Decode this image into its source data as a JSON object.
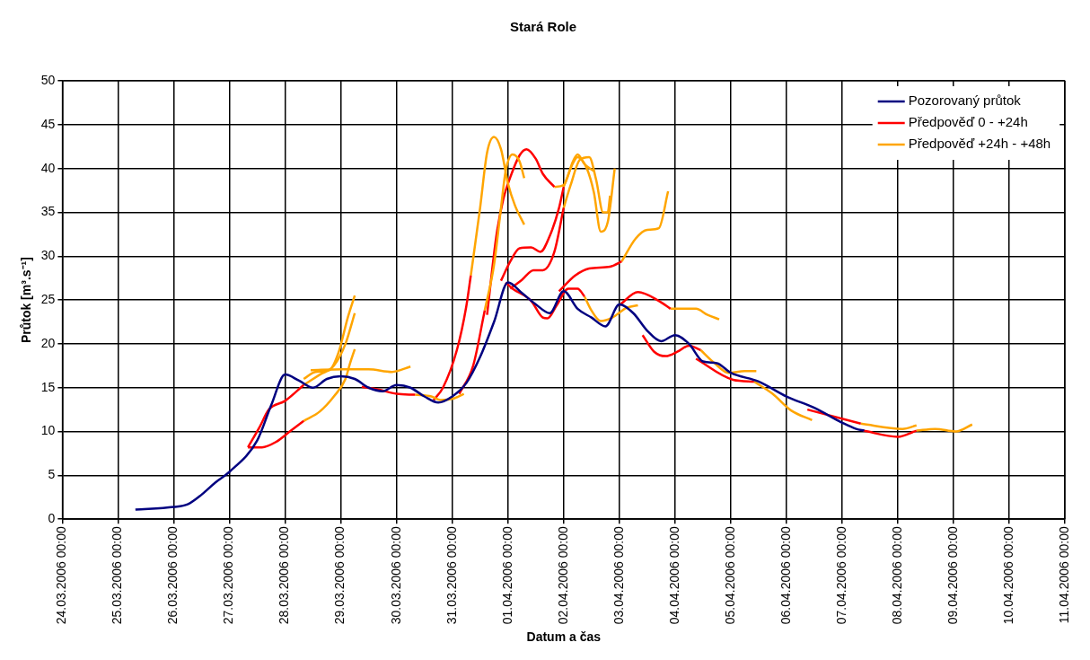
{
  "chart_data": {
    "type": "line",
    "title": "Stará Role",
    "xlabel": "Datum a čas",
    "ylabel": "Průtok [m³.s⁻¹]",
    "xlim": [
      "2006-03-24T00:00",
      "2006-04-11T00:00"
    ],
    "xticks": [
      {
        "value": "2006-03-24T00:00",
        "label": "24.03.2006 00:00"
      },
      {
        "value": "2006-03-25T00:00",
        "label": "25.03.2006 00:00"
      },
      {
        "value": "2006-03-26T00:00",
        "label": "26.03.2006 00:00"
      },
      {
        "value": "2006-03-27T00:00",
        "label": "27.03.2006 00:00"
      },
      {
        "value": "2006-03-28T00:00",
        "label": "28.03.2006 00:00"
      },
      {
        "value": "2006-03-29T00:00",
        "label": "29.03.2006 00:00"
      },
      {
        "value": "2006-03-30T00:00",
        "label": "30.03.2006 00:00"
      },
      {
        "value": "2006-03-31T00:00",
        "label": "31.03.2006 00:00"
      },
      {
        "value": "2006-04-01T00:00",
        "label": "01.04.2006 00:00"
      },
      {
        "value": "2006-04-02T00:00",
        "label": "02.04.2006 00:00"
      },
      {
        "value": "2006-04-03T00:00",
        "label": "03.04.2006 00:00"
      },
      {
        "value": "2006-04-04T00:00",
        "label": "04.04.2006 00:00"
      },
      {
        "value": "2006-04-05T00:00",
        "label": "05.04.2006 00:00"
      },
      {
        "value": "2006-04-06T00:00",
        "label": "06.04.2006 00:00"
      },
      {
        "value": "2006-04-07T00:00",
        "label": "07.04.2006 00:00"
      },
      {
        "value": "2006-04-08T00:00",
        "label": "08.04.2006 00:00"
      },
      {
        "value": "2006-04-09T00:00",
        "label": "09.04.2006 00:00"
      },
      {
        "value": "2006-04-10T00:00",
        "label": "10.04.2006 00:00"
      },
      {
        "value": "2006-04-11T00:00",
        "label": "11.04.2006 00:00"
      }
    ],
    "ylim": [
      0,
      50
    ],
    "yticks": [
      0,
      5,
      10,
      15,
      20,
      25,
      30,
      35,
      40,
      45,
      50
    ],
    "grid": true,
    "legend": "top right",
    "marker": "none",
    "line_style": "solid",
    "series": [
      {
        "name": "Pozorovaný průtok",
        "color": "#000080",
        "x": [
          "2006-03-25T07:30",
          "2006-03-26T00:00",
          "2006-03-26T06:00",
          "2006-03-26T12:00",
          "2006-03-26T18:00",
          "2006-03-27T00:00",
          "2006-03-27T12:00",
          "2006-03-27T18:00",
          "2006-03-28T00:00",
          "2006-03-28T06:00",
          "2006-03-28T12:00",
          "2006-03-28T18:00",
          "2006-03-29T00:00",
          "2006-03-29T06:00",
          "2006-03-29T12:00",
          "2006-03-29T18:00",
          "2006-03-30T00:00",
          "2006-03-30T06:00",
          "2006-03-30T12:00",
          "2006-03-30T18:00",
          "2006-03-31T00:00",
          "2006-03-31T06:00",
          "2006-03-31T12:00",
          "2006-03-31T18:00",
          "2006-04-01T00:00",
          "2006-04-01T06:00",
          "2006-04-01T12:00",
          "2006-04-01T18:00",
          "2006-04-02T00:00",
          "2006-04-02T06:00",
          "2006-04-02T12:00",
          "2006-04-02T18:00",
          "2006-04-03T00:00",
          "2006-04-03T06:00",
          "2006-04-03T12:00",
          "2006-04-03T18:00",
          "2006-04-04T00:00",
          "2006-04-04T06:00",
          "2006-04-04T12:00",
          "2006-04-04T18:00",
          "2006-04-05T00:00",
          "2006-04-05T12:00",
          "2006-04-06T00:00",
          "2006-04-06T12:00",
          "2006-04-07T00:00",
          "2006-04-07T06:00",
          "2006-04-07T09:30"
        ],
        "values": [
          1.1,
          1.4,
          1.7,
          2.8,
          4.2,
          5.4,
          9,
          13,
          16.5,
          15.8,
          15,
          16,
          16.3,
          16,
          15,
          14.6,
          15.3,
          15,
          14,
          13.3,
          14,
          15.5,
          18.5,
          22.5,
          27,
          25.8,
          24.5,
          23.5,
          26,
          24,
          23,
          22,
          24.5,
          23.5,
          21.5,
          20.3,
          21,
          20,
          18,
          17.8,
          16.7,
          15.7,
          14,
          12.7,
          11,
          10.3,
          10.1
        ]
      },
      {
        "name": "Předpověď 0 - +24h",
        "color": "#ff0000",
        "x": [
          "2006-03-27T08:00",
          "2006-03-27T14:00",
          "2006-03-27T20:00",
          "2006-03-28T02:00",
          "2006-03-28T08:00"
        ],
        "values": [
          8.2,
          8.2,
          8.8,
          10,
          11.2
        ]
      },
      {
        "name": "Předpověď +24h - +48h",
        "color": "#ffa500",
        "x": [
          "2006-03-28T08:00",
          "2006-03-28T15:00",
          "2006-03-28T21:00",
          "2006-03-29T02:00",
          "2006-03-29T04:00",
          "2006-03-29T06:00"
        ],
        "values": [
          11.2,
          12.3,
          14,
          16,
          17.8,
          19.4
        ]
      },
      {
        "color": "#ff0000",
        "x": [
          "2006-03-27T08:00",
          "2006-03-27T13:00",
          "2006-03-27T17:00",
          "2006-03-28T00:00",
          "2006-03-28T08:00"
        ],
        "values": [
          8.2,
          10.5,
          12.5,
          13.5,
          15.3
        ]
      },
      {
        "color": "#ffa500",
        "x": [
          "2006-03-28T08:00",
          "2006-03-28T15:00",
          "2006-03-28T21:00",
          "2006-03-29T02:00",
          "2006-03-29T06:00"
        ],
        "values": [
          15.3,
          16.5,
          17.5,
          20,
          23.5
        ]
      },
      {
        "color": "#ffa500",
        "x": [
          "2006-03-28T08:00",
          "2006-03-28T13:00",
          "2006-03-28T19:00",
          "2006-03-28T23:00",
          "2006-03-29T03:00",
          "2006-03-29T06:00"
        ],
        "values": [
          16,
          16.8,
          17,
          19,
          23,
          25.5
        ]
      },
      {
        "color": "#ffa500",
        "x": [
          "2006-03-28T11:00",
          "2006-03-29T01:00",
          "2006-03-29T12:00",
          "2006-03-29T22:00",
          "2006-03-30T06:00"
        ],
        "values": [
          17,
          17.1,
          17.1,
          16.8,
          17.4
        ]
      },
      {
        "color": "#ff0000",
        "x": [
          "2006-03-29T09:00",
          "2006-03-29T16:00",
          "2006-03-30T00:00",
          "2006-03-30T08:00"
        ],
        "values": [
          15.1,
          14.8,
          14.3,
          14.2
        ]
      },
      {
        "color": "#ffa500",
        "x": [
          "2006-03-30T08:00",
          "2006-03-30T15:00",
          "2006-03-30T19:00",
          "2006-03-31T01:00",
          "2006-03-31T05:00"
        ],
        "values": [
          14.2,
          14,
          13.6,
          13.8,
          14.3
        ]
      },
      {
        "color": "#ff0000",
        "x": [
          "2006-03-30T16:00",
          "2006-03-30T20:00",
          "2006-03-31T02:00",
          "2006-03-31T06:00",
          "2006-03-31T08:00"
        ],
        "values": [
          13.6,
          15,
          19.3,
          24.2,
          27.8
        ]
      },
      {
        "color": "#ffa500",
        "x": [
          "2006-03-31T08:00",
          "2006-03-31T12:00",
          "2006-03-31T15:00",
          "2006-03-31T18:00",
          "2006-03-31T21:00",
          "2006-04-01T00:00",
          "2006-04-01T03:00",
          "2006-04-01T07:00"
        ],
        "values": [
          27.8,
          35.5,
          41.8,
          43.6,
          42.2,
          38.3,
          35.8,
          33.6
        ]
      },
      {
        "color": "#ff0000",
        "x": [
          "2006-03-31T03:00",
          "2006-03-31T09:00",
          "2006-03-31T14:00"
        ],
        "values": [
          14.3,
          17.5,
          23.8
        ]
      },
      {
        "color": "#ffa500",
        "x": [
          "2006-03-31T14:00",
          "2006-03-31T18:00",
          "2006-03-31T21:00",
          "2006-03-31T23:00",
          "2006-04-01T02:00",
          "2006-04-01T05:00",
          "2006-04-01T07:00"
        ],
        "values": [
          23.8,
          29,
          35.5,
          39.7,
          41.6,
          40.8,
          38.9
        ]
      },
      {
        "color": "#ff0000",
        "x": [
          "2006-03-31T15:00",
          "2006-03-31T19:00",
          "2006-03-31T22:00",
          "2006-04-01T01:00",
          "2006-04-01T05:00",
          "2006-04-01T08:00",
          "2006-04-01T12:00",
          "2006-04-01T15:00",
          "2006-04-01T20:00"
        ],
        "values": [
          23.3,
          32.3,
          36.5,
          39,
          41.5,
          42.2,
          41.1,
          39.4,
          37.9
        ]
      },
      {
        "color": "#ffa500",
        "x": [
          "2006-04-01T20:00",
          "2006-04-02T00:00",
          "2006-04-02T04:00",
          "2006-04-02T06:00",
          "2006-04-02T09:00",
          "2006-04-02T13:00"
        ],
        "values": [
          37.9,
          38.1,
          40.8,
          41.6,
          40.5,
          39.7
        ]
      },
      {
        "color": "#ff0000",
        "x": [
          "2006-03-31T21:00",
          "2006-04-01T01:00",
          "2006-04-01T05:00",
          "2006-04-01T10:00",
          "2006-04-01T14:00",
          "2006-04-01T18:00",
          "2006-04-01T22:00",
          "2006-04-02T00:00"
        ],
        "values": [
          27.2,
          29.4,
          30.9,
          31,
          30.5,
          32.3,
          35.5,
          37.9
        ]
      },
      {
        "color": "#ffa500",
        "x": [
          "2006-04-02T00:00",
          "2006-04-02T04:00",
          "2006-04-02T06:00",
          "2006-04-02T10:00",
          "2006-04-02T13:00",
          "2006-04-02T16:00",
          "2006-04-02T19:00",
          "2006-04-02T22:00"
        ],
        "values": [
          37.9,
          40.6,
          41.3,
          40,
          37.3,
          32.8,
          33.9,
          40
        ]
      },
      {
        "color": "#ff0000",
        "x": [
          "2006-04-01T01:00",
          "2006-04-01T06:00",
          "2006-04-01T11:00",
          "2006-04-01T15:00",
          "2006-04-01T20:00",
          "2006-04-02T00:00"
        ],
        "values": [
          26.3,
          27.3,
          28.4,
          28.4,
          30.5,
          35.5
        ]
      },
      {
        "color": "#ffa500",
        "x": [
          "2006-04-02T00:00",
          "2006-04-02T03:00",
          "2006-04-02T07:00",
          "2006-04-02T11:00",
          "2006-04-02T14:00",
          "2006-04-02T17:00",
          "2006-04-02T19:00",
          "2006-04-02T20:00"
        ],
        "values": [
          35.5,
          38.1,
          41,
          41.3,
          38.7,
          35,
          35,
          36.9
        ]
      },
      {
        "color": "#ff0000",
        "x": [
          "2006-04-01T22:00",
          "2006-04-02T05:00",
          "2006-04-02T11:00",
          "2006-04-02T20:00",
          "2006-04-03T01:00"
        ],
        "values": [
          26,
          27.8,
          28.6,
          28.8,
          29.4
        ]
      },
      {
        "color": "#ffa500",
        "x": [
          "2006-04-03T01:00",
          "2006-04-03T07:00",
          "2006-04-03T12:00",
          "2006-04-03T17:00",
          "2006-04-03T21:00"
        ],
        "values": [
          29.4,
          32,
          33,
          33.2,
          37.4
        ]
      },
      {
        "color": "#ff0000",
        "x": [
          "2006-03-31T23:00",
          "2006-04-01T02:00",
          "2006-04-01T10:00",
          "2006-04-01T15:00",
          "2006-04-01T17:00",
          "2006-04-01T21:00",
          "2006-04-02T02:00",
          "2006-04-02T06:00",
          "2006-04-02T09:00"
        ],
        "values": [
          27,
          26.3,
          24.9,
          23,
          22.9,
          24.4,
          26.3,
          26.3,
          25.4
        ]
      },
      {
        "color": "#ffa500",
        "x": [
          "2006-04-02T09:00",
          "2006-04-02T12:00",
          "2006-04-02T16:00",
          "2006-04-02T21:00",
          "2006-04-03T03:00",
          "2006-04-03T08:00"
        ],
        "values": [
          25.4,
          23.8,
          22.6,
          23,
          24.1,
          24.4
        ]
      },
      {
        "color": "#ff0000",
        "x": [
          "2006-04-03T00:00",
          "2006-04-03T08:00",
          "2006-04-03T17:00",
          "2006-04-03T22:00"
        ],
        "values": [
          24.4,
          25.9,
          24.9,
          24
        ]
      },
      {
        "color": "#ffa500",
        "x": [
          "2006-04-03T22:00",
          "2006-04-04T09:00",
          "2006-04-04T14:00",
          "2006-04-04T19:00"
        ],
        "values": [
          24,
          24,
          23.3,
          22.8
        ]
      },
      {
        "color": "#ff0000",
        "x": [
          "2006-04-03T10:00",
          "2006-04-03T15:00",
          "2006-04-03T20:00",
          "2006-04-04T01:00",
          "2006-04-04T06:00",
          "2006-04-04T11:00"
        ],
        "values": [
          21,
          19.1,
          18.6,
          19.1,
          19.8,
          19.3
        ]
      },
      {
        "color": "#ffa500",
        "x": [
          "2006-04-04T11:00",
          "2006-04-04T17:00",
          "2006-04-04T23:00",
          "2006-04-05T06:00",
          "2006-04-05T11:00"
        ],
        "values": [
          19.3,
          17.8,
          16.7,
          16.9,
          16.9
        ]
      },
      {
        "color": "#ff0000",
        "x": [
          "2006-04-04T09:00",
          "2006-04-05T01:00",
          "2006-04-05T10:00"
        ],
        "values": [
          18.3,
          15.9,
          15.7
        ]
      },
      {
        "color": "#ffa500",
        "x": [
          "2006-04-05T10:00",
          "2006-04-05T18:00",
          "2006-04-06T02:00",
          "2006-04-06T11:00"
        ],
        "values": [
          15.7,
          14.3,
          12.4,
          11.3
        ]
      },
      {
        "color": "#ff0000",
        "x": [
          "2006-04-06T09:00",
          "2006-04-07T08:00"
        ],
        "values": [
          12.5,
          10.9
        ]
      },
      {
        "color": "#ffa500",
        "x": [
          "2006-04-07T08:00",
          "2006-04-08T02:00",
          "2006-04-08T08:00"
        ],
        "values": [
          10.9,
          10.3,
          10.7
        ]
      },
      {
        "color": "#ff0000",
        "x": [
          "2006-04-07T09:00",
          "2006-04-08T00:00",
          "2006-04-08T08:00"
        ],
        "values": [
          10.1,
          9.4,
          10.1
        ]
      },
      {
        "color": "#ffa500",
        "x": [
          "2006-04-08T08:00",
          "2006-04-08T16:00",
          "2006-04-09T01:00",
          "2006-04-09T08:00"
        ],
        "values": [
          10.1,
          10.3,
          10,
          10.8
        ]
      }
    ]
  }
}
